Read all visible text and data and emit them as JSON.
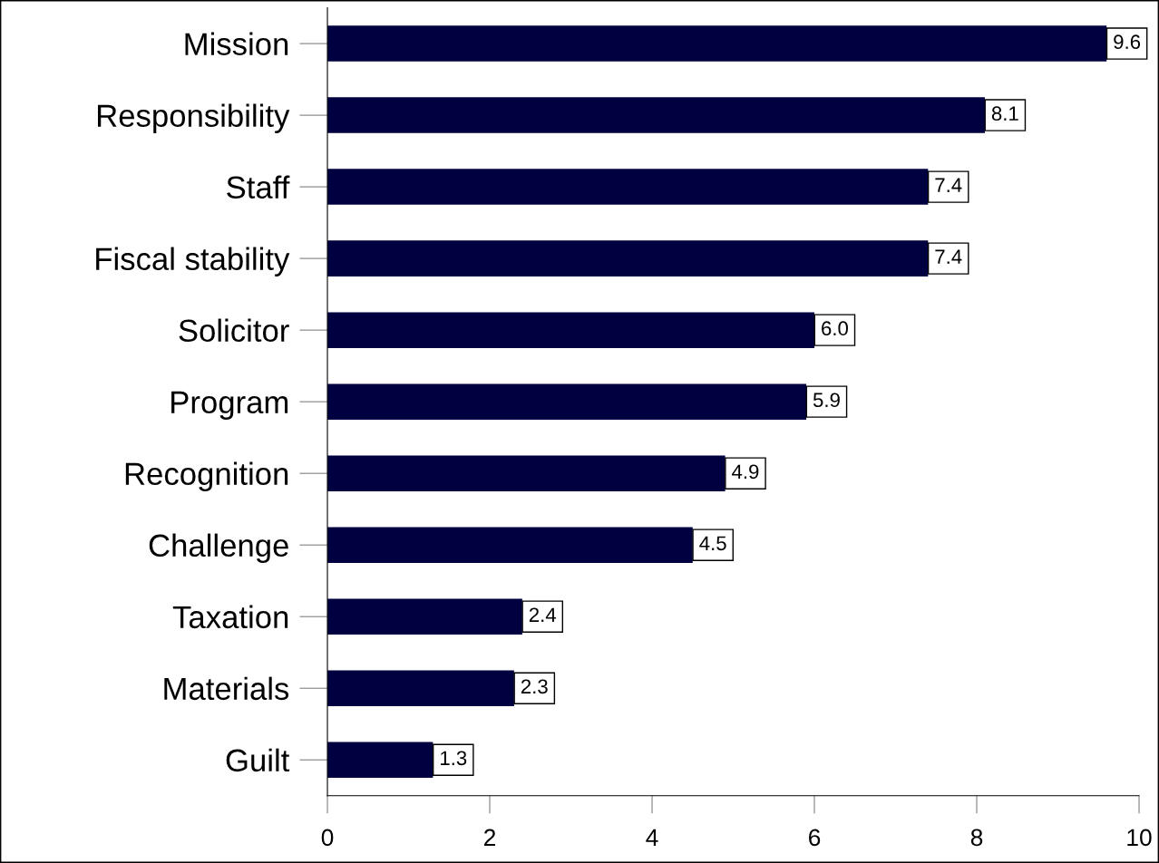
{
  "chart_data": {
    "type": "bar",
    "orientation": "horizontal",
    "categories": [
      "Mission",
      "Responsibility",
      "Staff",
      "Fiscal stability",
      "Solicitor",
      "Program",
      "Recognition",
      "Challenge",
      "Taxation",
      "Materials",
      "Guilt"
    ],
    "values": [
      9.6,
      8.1,
      7.4,
      7.4,
      6.0,
      5.9,
      4.9,
      4.5,
      2.4,
      2.3,
      1.3
    ],
    "value_labels": [
      "9.6",
      "8.1",
      "7.4",
      "7.4",
      "6.0",
      "5.9",
      "4.9",
      "4.5",
      "2.4",
      "2.3",
      "1.3"
    ],
    "color": "#000040",
    "xlim": [
      0,
      10
    ],
    "xticks": [
      0,
      2,
      4,
      6,
      8,
      10
    ],
    "grid": false
  }
}
